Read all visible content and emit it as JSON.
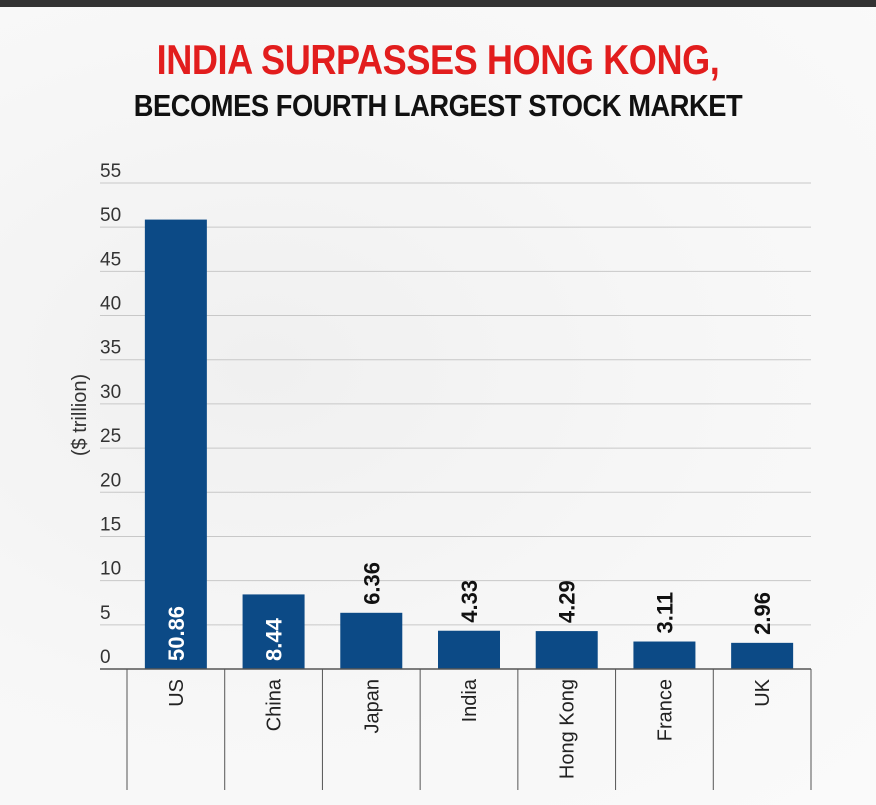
{
  "header": {
    "title": "INDIA SURPASSES HONG KONG,",
    "subtitle": "BECOMES FOURTH LARGEST STOCK MARKET"
  },
  "chart_data": {
    "type": "bar",
    "title": "INDIA SURPASSES HONG KONG,",
    "subtitle": "BECOMES FOURTH LARGEST STOCK MARKET",
    "xlabel": "",
    "ylabel": "($ trillion)",
    "ylim": [
      0,
      55
    ],
    "yticks": [
      0,
      5,
      10,
      15,
      20,
      25,
      30,
      35,
      40,
      45,
      50,
      55
    ],
    "grid": true,
    "categories": [
      "US",
      "China",
      "Japan",
      "India",
      "Hong Kong",
      "France",
      "UK"
    ],
    "values": [
      50.86,
      8.44,
      6.36,
      4.33,
      4.29,
      3.11,
      2.96
    ],
    "data_labels": [
      "50.86",
      "8.44",
      "6.36",
      "4.33",
      "4.29",
      "3.11",
      "2.96"
    ],
    "bar_color": "#0c4a86"
  }
}
